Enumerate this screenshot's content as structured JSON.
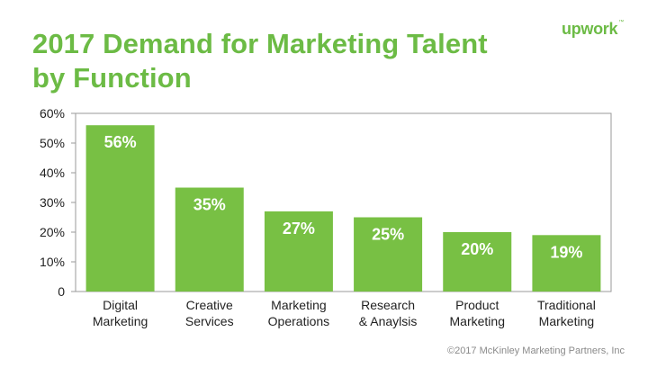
{
  "title_line1": "2017 Demand for Marketing Talent",
  "title_line2": "by Function",
  "logo_text": "upwork",
  "logo_mark": "™",
  "footer": "©2017 McKinley Marketing Partners, Inc",
  "colors": {
    "accent": "#6cbb45",
    "bar": "#78c044",
    "axis": "#9a9a9a",
    "text": "#222222"
  },
  "chart_data": {
    "type": "bar",
    "categories": [
      [
        "Digital",
        "Marketing"
      ],
      [
        "Creative",
        "Services"
      ],
      [
        "Marketing",
        "Operations"
      ],
      [
        "Research",
        "& Anaylsis"
      ],
      [
        "Product",
        "Marketing"
      ],
      [
        "Traditional",
        "Marketing"
      ]
    ],
    "values": [
      56,
      35,
      27,
      25,
      20,
      19
    ],
    "data_labels": [
      "56%",
      "35%",
      "27%",
      "25%",
      "20%",
      "19%"
    ],
    "y_ticks": [
      0,
      10,
      20,
      30,
      40,
      50,
      60
    ],
    "y_tick_labels": [
      "0",
      "10%",
      "20%",
      "30%",
      "40%",
      "50%",
      "60%"
    ],
    "ylim": [
      0,
      60
    ],
    "grid": false,
    "legend": "none"
  }
}
